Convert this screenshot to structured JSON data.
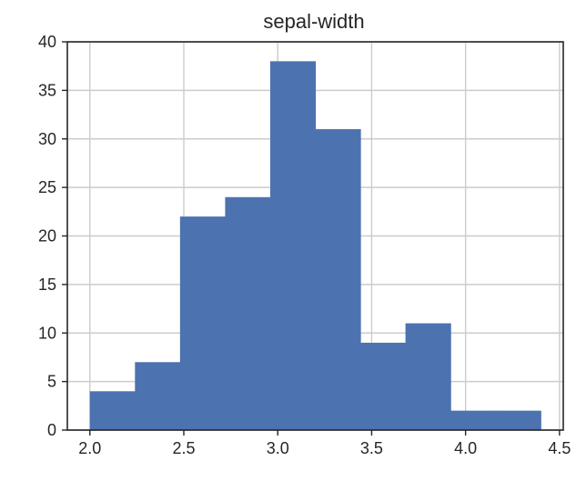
{
  "chart_data": {
    "type": "bar",
    "title": "sepal-width",
    "xlabel": "",
    "ylabel": "",
    "bin_edges": [
      2.0,
      2.24,
      2.48,
      2.72,
      2.96,
      3.2,
      3.44,
      3.68,
      3.92,
      4.16,
      4.4
    ],
    "values": [
      4,
      7,
      22,
      24,
      38,
      31,
      9,
      11,
      2,
      2
    ],
    "xlim": [
      1.88,
      4.52
    ],
    "ylim": [
      0,
      40
    ],
    "x_ticks": [
      2.0,
      2.5,
      3.0,
      3.5,
      4.0,
      4.5
    ],
    "x_tick_labels": [
      "2.0",
      "2.5",
      "3.0",
      "3.5",
      "4.0",
      "4.5"
    ],
    "y_ticks": [
      0,
      5,
      10,
      15,
      20,
      25,
      30,
      35,
      40
    ],
    "y_tick_labels": [
      "0",
      "5",
      "10",
      "15",
      "20",
      "25",
      "30",
      "35",
      "40"
    ],
    "grid": true,
    "bar_color": "#4c72b0",
    "grid_color": "#cccccc",
    "axis_color": "#262626",
    "text_color": "#262626"
  }
}
